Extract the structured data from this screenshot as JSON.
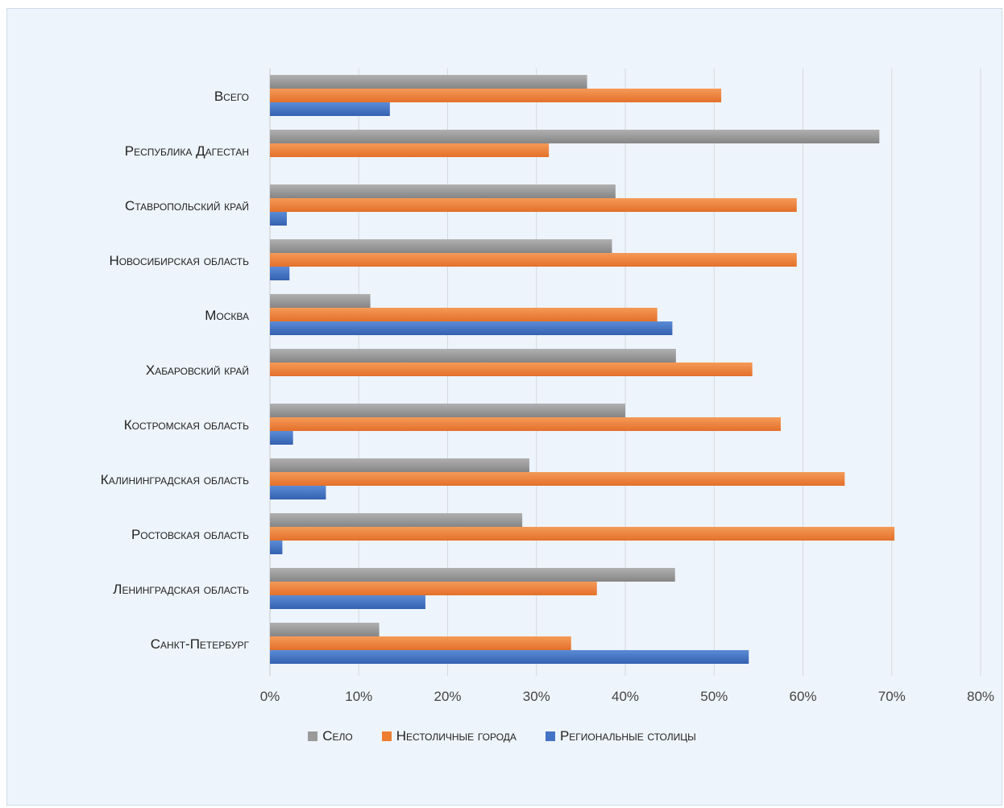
{
  "chart_data": {
    "type": "bar",
    "orientation": "horizontal",
    "categories": [
      "Всего",
      "Республика Дагестан",
      "Ставропольский край",
      "Новосибирская область",
      "Москва",
      "Хабаровский край",
      "Костромская область",
      "Калининградская область",
      "Ростовская область",
      "Ленинградская область",
      "Санкт-Петербург"
    ],
    "series": [
      {
        "name": "Село",
        "color": "#9a9a9a",
        "values": [
          35.7,
          68.6,
          38.9,
          38.5,
          11.3,
          45.7,
          40.0,
          29.2,
          28.4,
          45.6,
          12.3
        ]
      },
      {
        "name": "Нестоличные города",
        "color": "#ed7d31",
        "values": [
          50.8,
          31.4,
          59.3,
          59.3,
          43.6,
          54.3,
          57.5,
          64.7,
          70.3,
          36.8,
          33.9
        ]
      },
      {
        "name": "Региональные столицы",
        "color": "#4472c4",
        "values": [
          13.5,
          0,
          1.9,
          2.2,
          45.3,
          0,
          2.6,
          6.3,
          1.4,
          17.5,
          53.9
        ]
      }
    ],
    "xlim": [
      0,
      80
    ],
    "x_ticks": [
      "0%",
      "10%",
      "20%",
      "30%",
      "40%",
      "50%",
      "60%",
      "70%",
      "80%"
    ],
    "grid": true,
    "legend_position": "bottom"
  }
}
